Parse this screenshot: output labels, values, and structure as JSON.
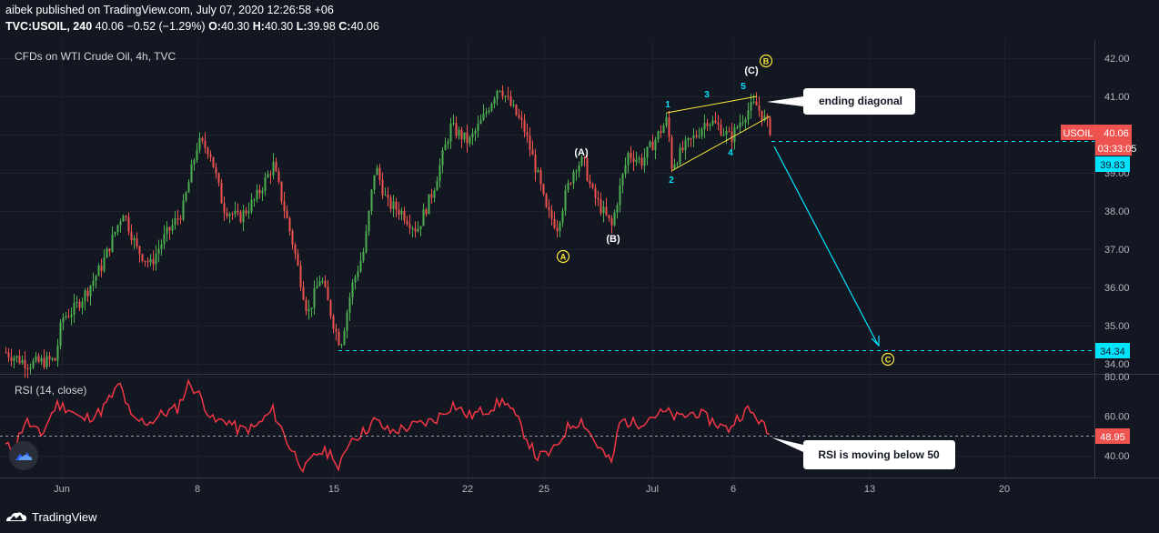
{
  "header": {
    "publisher_line": "aibek published on TradingView.com, July 07, 2020 12:26:58 +06",
    "user": "aibek",
    "symbol": "TVC:USOIL, 240",
    "last": "40.06",
    "change": "−0.52 (−1.29%)",
    "o_label": "O:",
    "o": "40.30",
    "h_label": "H:",
    "h": "40.30",
    "l_label": "L:",
    "l": "39.98",
    "c_label": "C:",
    "c": "40.06"
  },
  "footer": {
    "brand": "TradingView"
  },
  "colors": {
    "background": "#131722",
    "up": "#26a69a",
    "up_candle": "#4caf50",
    "down": "#ef5350",
    "rsi_line": "#f23645",
    "wave_yellow": "#ffeb3b",
    "cyan": "#00e5ff",
    "grid": "#2a2e39"
  },
  "chart_data": [
    {
      "type": "candlestick",
      "title": "CFDs on WTI Crude Oil, 4h, TVC",
      "ylim": [
        33.8,
        42.5
      ],
      "y_ticks": [
        "42.00",
        "41.00",
        "40.00",
        "39.00",
        "38.00",
        "37.00",
        "36.00",
        "35.00",
        "34.00"
      ],
      "x_ticks": [
        "Jun",
        "8",
        "15",
        "22",
        "25",
        "Jul",
        "6",
        "13",
        "20"
      ],
      "price_labels": [
        {
          "symbol": "USOIL",
          "value": "40.06",
          "countdown": "03:33:05",
          "color": "#ef5350"
        },
        {
          "value": "39.83",
          "color": "#00e5ff"
        },
        {
          "value": "34.34",
          "color": "#00e5ff"
        }
      ],
      "wave_labels": {
        "primary": [
          "A",
          "B",
          "C"
        ],
        "intermediate": [
          "(A)",
          "(B)",
          "(C)"
        ],
        "diagonal": [
          "1",
          "2",
          "3",
          "4",
          "5"
        ]
      },
      "callouts": [
        "ending diagonal"
      ],
      "target_level": 34.34,
      "support_level": 39.83
    },
    {
      "type": "line",
      "title": "RSI (14, close)",
      "y_ticks": [
        "80.00",
        "60.00",
        "40.00"
      ],
      "last_value": "48.95",
      "reference_level": 48.95,
      "callouts": [
        "RSI is moving below 50"
      ]
    }
  ]
}
